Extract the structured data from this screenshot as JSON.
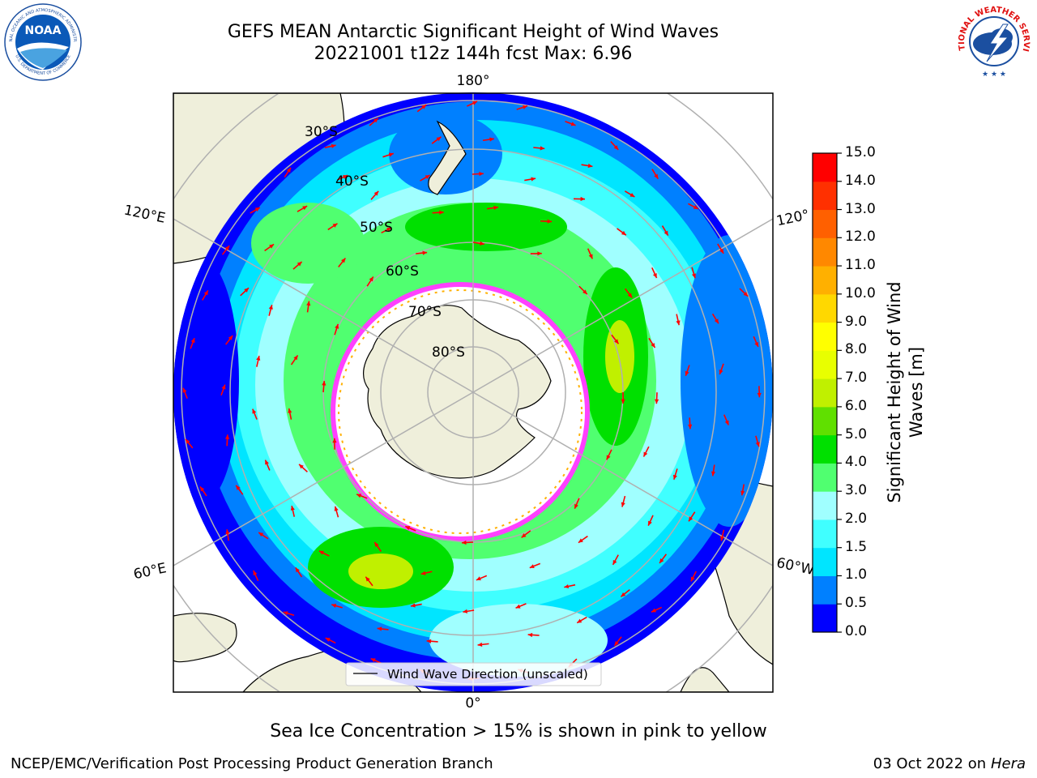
{
  "title": {
    "line1": "GEFS MEAN Antarctic Significant Height of Wind Waves",
    "line2": "20221001 t12z 144h fcst   Max: 6.96"
  },
  "logos": {
    "left": "NOAA",
    "left_ring_top": "NATIONAL OCEANIC AND ATMOSPHERIC ADMINISTRATION",
    "left_ring_bottom": "U.S. DEPARTMENT OF COMMERCE",
    "right_ring": "NATIONAL WEATHER SERVICE"
  },
  "map": {
    "projection": "south-polar-stereographic",
    "longitude_labels": {
      "top": "180°",
      "bottom": "0°",
      "upper_left": "120°E",
      "upper_right": "120°",
      "lower_left": "60°E",
      "lower_right": "60°W"
    },
    "latitude_labels": [
      "30°S",
      "40°S",
      "50°S",
      "60°S",
      "70°S",
      "80°S"
    ],
    "legend_entry": "Wind Wave Direction (unscaled)",
    "arrow_color": "#ff0000"
  },
  "colorbar": {
    "label": "Significant Height of Wind Waves [m]",
    "label_line1": "Significant Height of Wind",
    "label_line2": "Waves [m]",
    "ticks": [
      "0.0",
      "0.5",
      "1.0",
      "1.5",
      "2.0",
      "3.0",
      "4.0",
      "5.0",
      "6.0",
      "7.0",
      "8.0",
      "9.0",
      "10.0",
      "11.0",
      "12.0",
      "13.0",
      "14.0",
      "15.0"
    ],
    "colors": [
      "#0000ff",
      "#0080ff",
      "#00e5ff",
      "#40ffff",
      "#a0ffff",
      "#50ff70",
      "#00e000",
      "#60e000",
      "#c0f000",
      "#e8ff00",
      "#ffff00",
      "#ffd800",
      "#ffb000",
      "#ff8800",
      "#ff6000",
      "#ff3000",
      "#ff0000"
    ]
  },
  "footnote": "Sea Ice Concentration > 15% is shown in pink to yellow",
  "credit_left": "NCEP/EMC/Verification Post Processing Product Generation Branch",
  "credit_right_date": "03 Oct 2022 on ",
  "credit_right_host": "Hera"
}
